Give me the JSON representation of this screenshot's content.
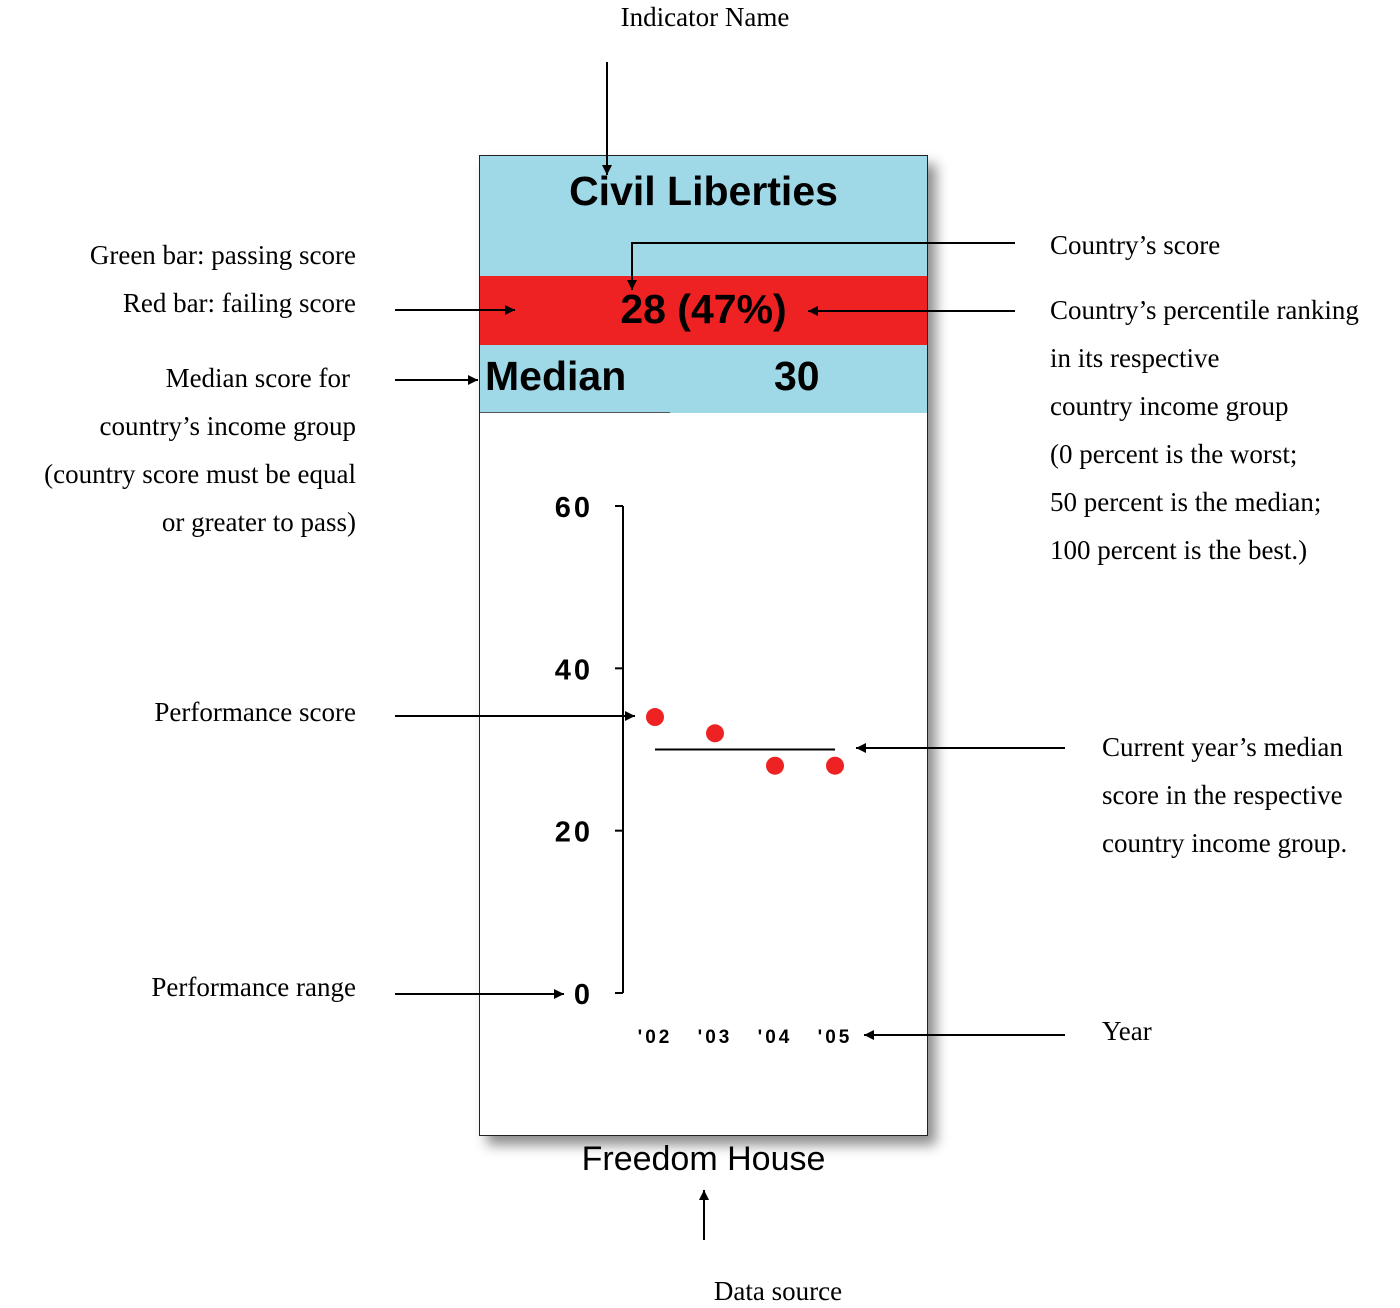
{
  "labels": {
    "indicator_name": "Indicator Name",
    "data_source": "Data source",
    "bar_lines": [
      "Green bar: passing score",
      "Red bar: failing score"
    ],
    "median_lines": [
      "Median score for",
      "country’s income group",
      "(country score must be equal",
      "or greater to pass)"
    ],
    "performance_score": "Performance score",
    "performance_range": "Performance range",
    "country_score": "Country’s score",
    "percentile_lines": [
      "Country’s percentile ranking",
      "in its respective",
      "country income group",
      "(0 percent is the worst;",
      "50 percent is the median;",
      "100 percent is the best.)"
    ],
    "current_median_lines": [
      "Current year’s median",
      "score in the respective",
      "country income group."
    ],
    "year": "Year"
  },
  "card": {
    "title": "Civil Liberties",
    "score_text": "28 (47%)",
    "median_label": "Median",
    "median_value": "30",
    "source": "Freedom House"
  },
  "colors": {
    "band_blue": "#9fd8e6",
    "fail_red": "#ee2222",
    "dot_red": "#ee2222"
  },
  "chart_data": {
    "type": "scatter",
    "title": "Civil Liberties",
    "categories": [
      "'02",
      "'03",
      "'04",
      "'05"
    ],
    "series": [
      {
        "values": [
          34,
          32,
          28,
          28
        ]
      }
    ],
    "median_line": 30,
    "ylim": [
      0,
      60
    ],
    "yticks": [
      60,
      40,
      20,
      0
    ],
    "xlabel": "",
    "ylabel": "",
    "grid": false
  }
}
